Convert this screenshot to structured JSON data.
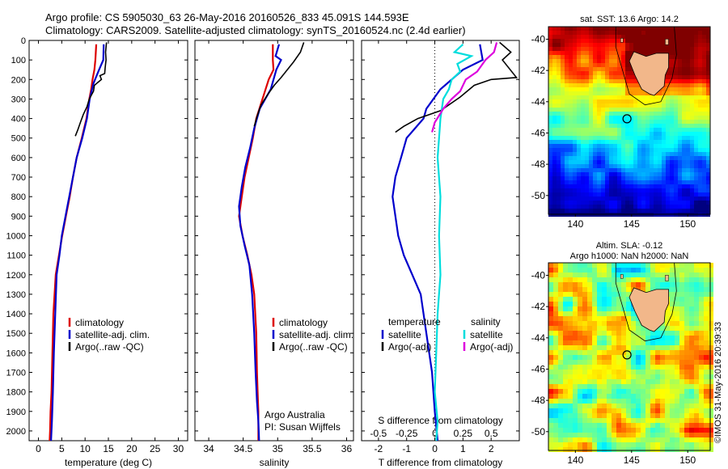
{
  "header": {
    "line1": "Argo profile: CS 5905030_63 26-May-2016 20160526_833 45.091S 144.593E",
    "line2": "Climatology: CARS2009. Satellite-adjusted climatology: synTS_20160524.nc (2.4d earlier)"
  },
  "colors": {
    "climatology": "#dd0000",
    "satellite": "#0000cc",
    "argo": "#000000",
    "sal_sat": "#00dddd",
    "sal_argo": "#dd00dd"
  },
  "chart_data": [
    {
      "type": "line",
      "xlabel": "temperature (deg C)",
      "xticks": [
        0,
        5,
        10,
        15,
        20,
        25,
        30
      ],
      "yticks": [
        0,
        100,
        200,
        300,
        400,
        500,
        600,
        700,
        800,
        900,
        1000,
        1100,
        1200,
        1300,
        1400,
        1500,
        1600,
        1700,
        1800,
        1900,
        2000
      ],
      "xlim": [
        -2,
        32
      ],
      "ylim": [
        2050,
        0
      ],
      "legend": [
        "climatology",
        "satellite-adj. clim.",
        "Argo(..raw -QC)"
      ],
      "series": [
        {
          "name": "climatology",
          "color": "#dd0000",
          "x": [
            12.4,
            12.2,
            12.0,
            11.6,
            11.3,
            10.9,
            10.3,
            9.3,
            8.2,
            7.4,
            6.7,
            5.9,
            5.1,
            4.4,
            3.7,
            3.2,
            3.0,
            2.8,
            2.6,
            2.5,
            2.4
          ],
          "y": [
            20,
            100,
            150,
            200,
            250,
            300,
            400,
            500,
            600,
            700,
            800,
            900,
            1000,
            1100,
            1200,
            1400,
            1600,
            1800,
            1900,
            2000,
            2050
          ]
        },
        {
          "name": "satellite-adj. clim.",
          "color": "#0000cc",
          "x": [
            14.0,
            13.9,
            13.0,
            11.8,
            11.0,
            10.4,
            9.4,
            8.2,
            7.4,
            6.6,
            5.8,
            5.0,
            4.5,
            3.9,
            3.6,
            3.3,
            3.1,
            2.9,
            2.7
          ],
          "y": [
            20,
            100,
            150,
            220,
            300,
            400,
            500,
            600,
            700,
            800,
            900,
            1000,
            1100,
            1200,
            1400,
            1600,
            1800,
            1950,
            2050
          ]
        },
        {
          "name": "Argo(..raw -QC)",
          "color": "#000000",
          "x": [
            14.6,
            14.4,
            14.5,
            14.3,
            14.2,
            13.2,
            13.5,
            12.0,
            11.8,
            10.9,
            10.4,
            9.6,
            9.0,
            8.4,
            7.9
          ],
          "y": [
            10,
            60,
            100,
            140,
            170,
            180,
            200,
            230,
            260,
            300,
            340,
            380,
            420,
            460,
            490
          ]
        }
      ]
    },
    {
      "type": "line",
      "xlabel": "salinity",
      "xticks": [
        34,
        34.5,
        35,
        35.5,
        36
      ],
      "yticks": [],
      "xlim": [
        33.8,
        36.1
      ],
      "ylim": [
        2050,
        0
      ],
      "legend": [
        "climatology",
        "satellite-adj. clim.",
        "Argo(..raw -QC)"
      ],
      "annotations": [
        "Argo Australia",
        "PI: Susan Wijffels"
      ],
      "series": [
        {
          "name": "climatology",
          "color": "#dd0000",
          "x": [
            34.93,
            34.93,
            34.94,
            34.87,
            34.78,
            34.69,
            34.64,
            34.58,
            34.52,
            34.48,
            34.44,
            34.49,
            34.56,
            34.62,
            34.66,
            34.69,
            34.7,
            34.71,
            34.72,
            34.72
          ],
          "y": [
            20,
            100,
            150,
            200,
            300,
            400,
            500,
            600,
            700,
            800,
            900,
            1000,
            1100,
            1200,
            1300,
            1500,
            1700,
            1800,
            1900,
            2050
          ]
        },
        {
          "name": "satellite-adj. clim.",
          "color": "#0000cc",
          "x": [
            35.02,
            34.97,
            35.05,
            34.98,
            34.9,
            34.74,
            34.66,
            34.6,
            34.53,
            34.48,
            34.44,
            34.46,
            34.52,
            34.59,
            34.63,
            34.66,
            34.68,
            34.7,
            34.72,
            34.73
          ],
          "y": [
            20,
            80,
            100,
            150,
            250,
            350,
            450,
            550,
            650,
            750,
            850,
            950,
            1050,
            1150,
            1300,
            1500,
            1700,
            1850,
            1950,
            2050
          ]
        },
        {
          "name": "Argo(..raw -QC)",
          "color": "#000000",
          "x": [
            35.38,
            35.33,
            35.23,
            35.14,
            35.05,
            34.95,
            34.85,
            34.76,
            34.7,
            34.66
          ],
          "y": [
            10,
            60,
            110,
            150,
            190,
            230,
            280,
            330,
            390,
            440
          ]
        }
      ]
    },
    {
      "type": "line",
      "xlabel": "T difference from climatology",
      "x2label": "S difference from climatology",
      "xticks": [
        -2,
        -1,
        0,
        1,
        2
      ],
      "x2ticks": [
        -0.5,
        -0.25,
        0,
        0.25,
        0.5
      ],
      "x2ticklabels": [
        "-0.5",
        "-0.25",
        "0",
        "0.25",
        "0.5"
      ],
      "yticks": [],
      "xlim": [
        -2.6,
        3.0
      ],
      "ylim": [
        2050,
        0
      ],
      "legend": [
        "temperature",
        "satellite",
        "Argo(-adj)",
        "salinity",
        "satellite",
        "Argo(-adj)"
      ],
      "series": [
        {
          "name": "T satellite",
          "color": "#0000cc",
          "x": [
            1.6,
            1.7,
            1.0,
            0.2,
            -0.3,
            -0.4,
            -1.0,
            -1.2,
            -1.4,
            -1.5,
            -1.4,
            -1.3,
            -1.1,
            -0.8,
            -0.5,
            -0.3,
            -0.1,
            0.0,
            0.1
          ],
          "y": [
            20,
            100,
            150,
            250,
            350,
            400,
            500,
            600,
            700,
            800,
            900,
            1000,
            1100,
            1200,
            1300,
            1500,
            1700,
            1900,
            2050
          ]
        },
        {
          "name": "T Argo(-adj)",
          "color": "#000000",
          "x": [
            2.3,
            2.7,
            2.4,
            2.9,
            2.0,
            1.4,
            0.9,
            0.2,
            -0.6,
            -1.1,
            -1.4
          ],
          "y": [
            10,
            60,
            100,
            190,
            200,
            230,
            290,
            360,
            400,
            440,
            470
          ]
        },
        {
          "name": "S satellite",
          "color": "#00dddd",
          "x": [
            1.0,
            0.7,
            1.3,
            0.8,
            0.9,
            0.6,
            0.5,
            0.3,
            0.2,
            0.15,
            0.1,
            0.2,
            0.15,
            0.2,
            0.1,
            0.05,
            0.0,
            0.1,
            0.05
          ],
          "y": [
            20,
            60,
            80,
            120,
            160,
            200,
            250,
            300,
            400,
            500,
            600,
            800,
            1000,
            1200,
            1400,
            1600,
            1800,
            1950,
            2050
          ]
        },
        {
          "name": "S Argo(-adj)",
          "color": "#dd00dd",
          "x": [
            2.2,
            2.1,
            1.8,
            1.5,
            1.1,
            0.9,
            0.6,
            0.3,
            0.0,
            -0.1
          ],
          "y": [
            10,
            60,
            100,
            160,
            200,
            260,
            300,
            350,
            420,
            470
          ]
        }
      ]
    },
    {
      "type": "heatmap",
      "title": "sat. SST: 13.6 Argo: 14.2",
      "xticks": [
        140,
        145,
        150
      ],
      "yticks": [
        -40,
        -42,
        -44,
        -46,
        -48,
        -50
      ],
      "xlim": [
        137.6,
        152
      ],
      "ylim": [
        -51.2,
        -39.2
      ],
      "marker": {
        "lon": 144.593,
        "lat": -45.091
      }
    },
    {
      "type": "heatmap",
      "title": "Altim. SLA: -0.12",
      "subtitle": "Argo h1000: NaN h2000: NaN",
      "xticks": [
        140,
        145,
        150
      ],
      "yticks": [
        -40,
        -42,
        -44,
        -46,
        -48,
        -50
      ],
      "xlim": [
        137.6,
        152
      ],
      "ylim": [
        -51.2,
        -39.2
      ],
      "marker": {
        "lon": 144.593,
        "lat": -45.091
      }
    }
  ],
  "side_stamp": "©IMOS 31-May-2016 20:39:33"
}
